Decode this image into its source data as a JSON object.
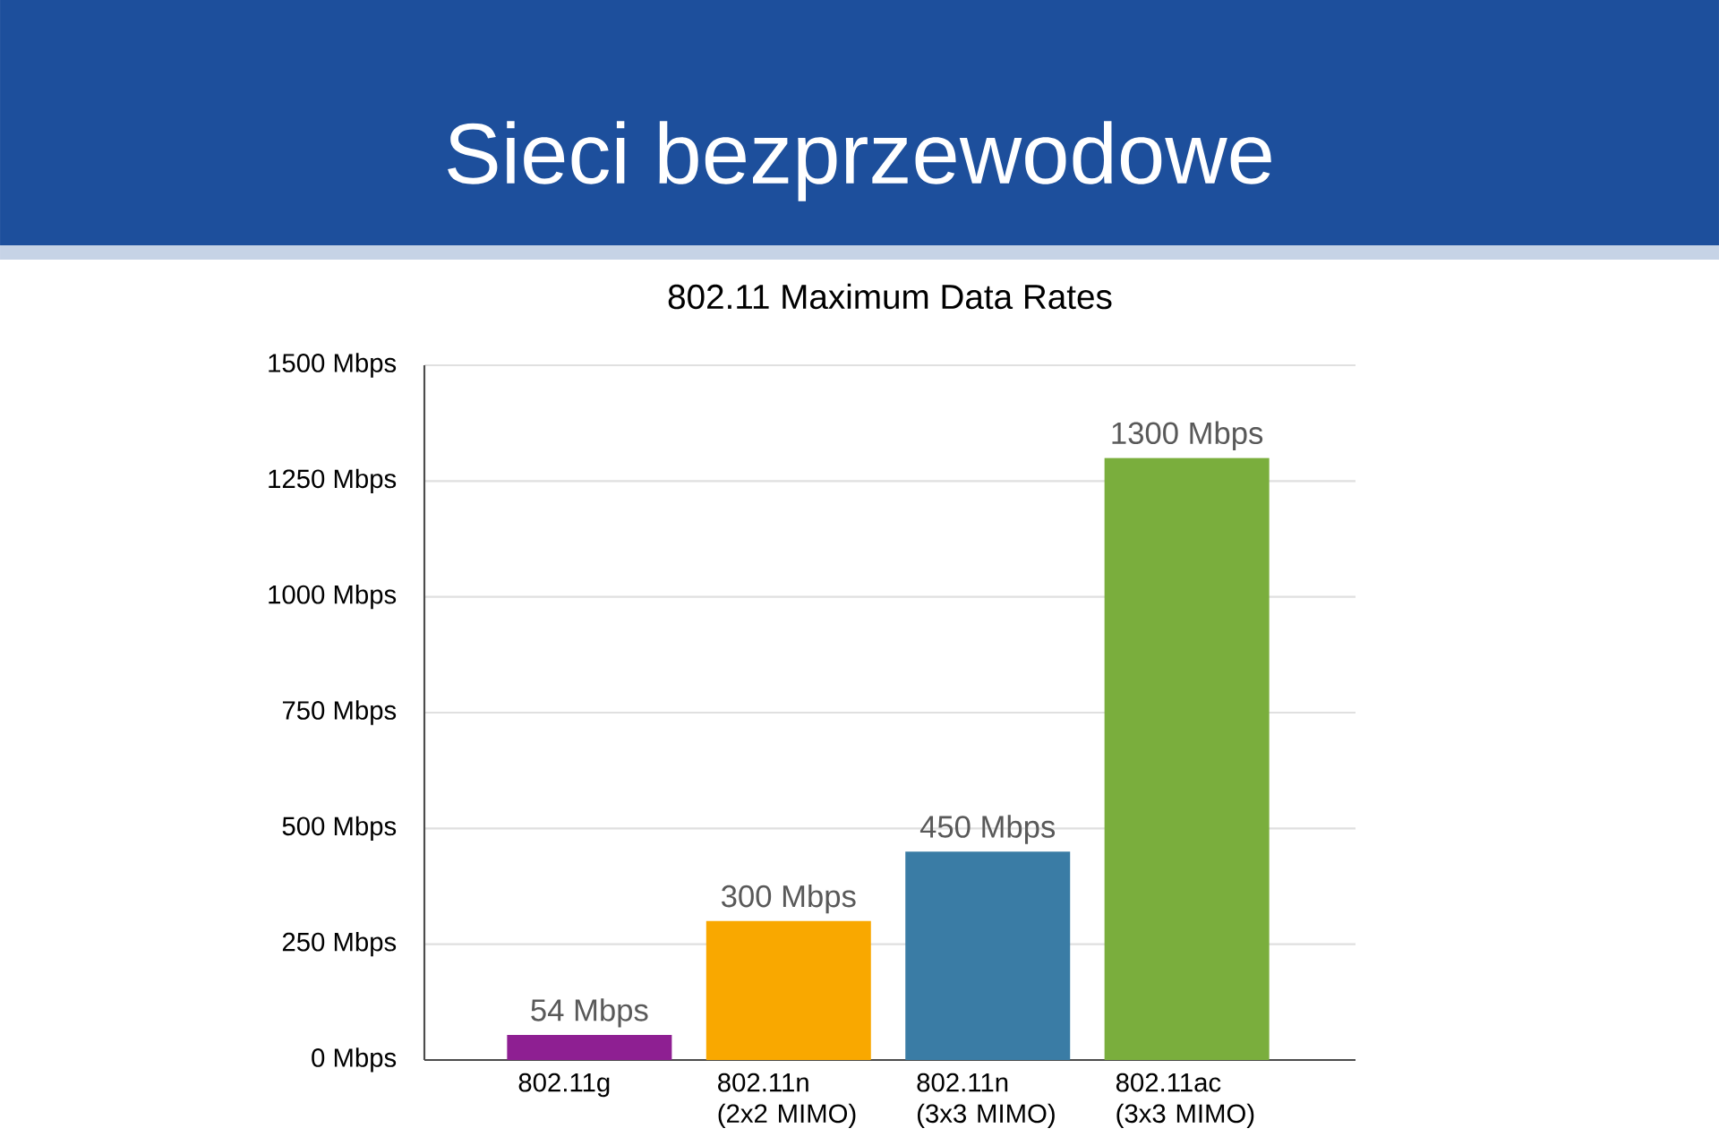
{
  "chart_data": {
    "type": "bar",
    "title": "Sieci bezprzewodowe",
    "subtitle": "802.11 Maximum Data Rates",
    "categories": [
      "802.11g",
      "802.11n (2x2 MIMO)",
      "802.11n (3x3 MIMO)",
      "802.11ac (3x3 MIMO)"
    ],
    "values": [
      54,
      300,
      450,
      1300
    ],
    "colors": [
      "#8e1f92",
      "#f9a800",
      "#3a7ca5",
      "#7aae3d"
    ],
    "value_labels": [
      "54 Mbps",
      "300 Mbps",
      "450 Mbps",
      "1300 Mbps"
    ],
    "ylim": [
      0,
      1500
    ],
    "yticks": [
      {
        "value": 0,
        "label": "0 Mbps"
      },
      {
        "value": 250,
        "label": "250 Mbps"
      },
      {
        "value": 500,
        "label": "500 Mbps"
      },
      {
        "value": 750,
        "label": "750 Mbps"
      },
      {
        "value": 1000,
        "label": "1000 Mbps"
      },
      {
        "value": 1250,
        "label": "1250 Mbps"
      },
      {
        "value": 1500,
        "label": "1500 Mbps"
      }
    ],
    "grid": "y"
  }
}
